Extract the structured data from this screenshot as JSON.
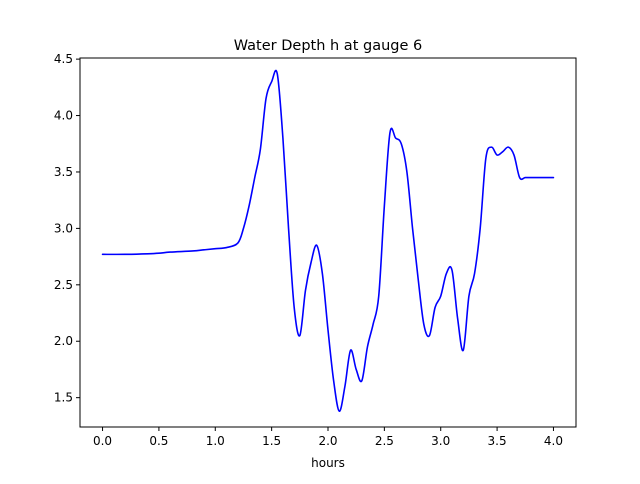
{
  "chart_data": {
    "type": "line",
    "title": "Water Depth h at gauge 6",
    "xlabel": "hours",
    "ylabel": "",
    "xlim": [
      -0.2,
      4.2
    ],
    "ylim": [
      1.24,
      4.51
    ],
    "xticks": [
      0.0,
      0.5,
      1.0,
      1.5,
      2.0,
      2.5,
      3.0,
      3.5,
      4.0
    ],
    "xtick_labels": [
      "0.0",
      "0.5",
      "1.0",
      "1.5",
      "2.0",
      "2.5",
      "3.0",
      "3.5",
      "4.0"
    ],
    "yticks": [
      1.5,
      2.0,
      2.5,
      3.0,
      3.5,
      4.0,
      4.5
    ],
    "ytick_labels": [
      "1.5",
      "2.0",
      "2.5",
      "3.0",
      "3.5",
      "4.0",
      "4.5"
    ],
    "grid": false,
    "series": [
      {
        "color": "#0000ff",
        "x": [
          0.0,
          0.2,
          0.4,
          0.5,
          0.6,
          0.8,
          0.9,
          1.0,
          1.1,
          1.2,
          1.25,
          1.3,
          1.35,
          1.4,
          1.45,
          1.5,
          1.55,
          1.6,
          1.65,
          1.7,
          1.75,
          1.8,
          1.85,
          1.9,
          1.95,
          2.0,
          2.05,
          2.1,
          2.15,
          2.2,
          2.25,
          2.3,
          2.35,
          2.4,
          2.45,
          2.5,
          2.55,
          2.6,
          2.65,
          2.7,
          2.75,
          2.8,
          2.85,
          2.9,
          2.95,
          3.0,
          3.05,
          3.1,
          3.15,
          3.2,
          3.25,
          3.3,
          3.35,
          3.4,
          3.45,
          3.5,
          3.55,
          3.6,
          3.65,
          3.7,
          3.75,
          3.8,
          3.85,
          3.9,
          3.95,
          4.0
        ],
        "y": [
          2.77,
          2.77,
          2.775,
          2.78,
          2.79,
          2.8,
          2.81,
          2.82,
          2.83,
          2.87,
          3.0,
          3.2,
          3.45,
          3.7,
          4.15,
          4.3,
          4.37,
          3.8,
          3.0,
          2.3,
          2.05,
          2.45,
          2.7,
          2.85,
          2.6,
          2.1,
          1.65,
          1.38,
          1.6,
          1.92,
          1.75,
          1.65,
          1.95,
          2.15,
          2.4,
          3.2,
          3.85,
          3.8,
          3.75,
          3.5,
          3.0,
          2.55,
          2.15,
          2.05,
          2.3,
          2.4,
          2.6,
          2.63,
          2.2,
          1.92,
          2.4,
          2.6,
          3.0,
          3.62,
          3.72,
          3.65,
          3.68,
          3.72,
          3.65,
          3.45,
          3.45,
          3.45,
          3.45,
          3.45,
          3.45,
          3.45
        ]
      }
    ]
  }
}
